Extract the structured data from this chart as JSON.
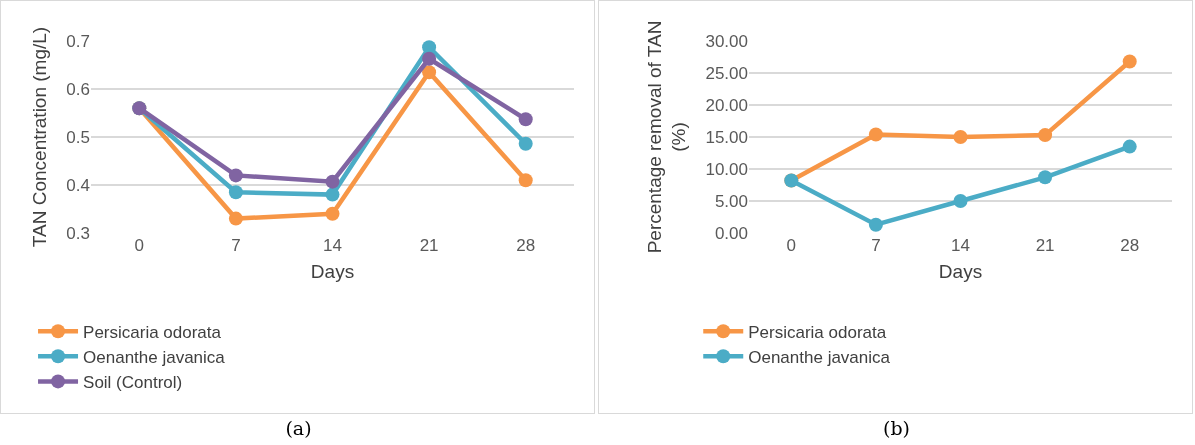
{
  "chart_data": [
    {
      "type": "line",
      "xlabel": "Days",
      "ylabel": "TAN Concentration (mg/L)",
      "categories": [
        "0",
        "7",
        "14",
        "21",
        "28"
      ],
      "series": [
        {
          "name": "Persicaria odorata",
          "color": "#f79646",
          "values": [
            0.56,
            0.33,
            0.34,
            0.635,
            0.41
          ]
        },
        {
          "name": "Oenanthe javanica",
          "color": "#4bacc6",
          "values": [
            0.56,
            0.385,
            0.38,
            0.687,
            0.486
          ]
        },
        {
          "name": "Soil (Control)",
          "color": "#8064a2",
          "values": [
            0.56,
            0.42,
            0.407,
            0.663,
            0.537
          ]
        }
      ],
      "ylim": [
        0.3,
        0.7
      ],
      "yticks": [
        0.3,
        0.4,
        0.5,
        0.6,
        0.7
      ],
      "grid": "y",
      "legend": "bottom",
      "marker": "circle",
      "line_style": "solid",
      "annotations": [
        "(a)"
      ]
    },
    {
      "type": "line",
      "xlabel": "Days",
      "ylabel": "Percentage removal of TAN (%)",
      "categories": [
        "0",
        "7",
        "14",
        "21",
        "28"
      ],
      "series": [
        {
          "name": "Persicaria odorata",
          "color": "#f79646",
          "values": [
            8.2,
            15.4,
            15.0,
            15.3,
            26.8
          ]
        },
        {
          "name": "Oenanthe javanica",
          "color": "#4bacc6",
          "values": [
            8.2,
            1.3,
            5.0,
            8.7,
            13.5
          ]
        }
      ],
      "ylim": [
        0,
        30
      ],
      "yticks": [
        {
          "value": 0,
          "label": "0.00"
        },
        {
          "value": 5,
          "label": "5.00"
        },
        {
          "value": 10,
          "label": "10.00"
        },
        {
          "value": 15,
          "label": "15.00"
        },
        {
          "value": 20,
          "label": "20.00"
        },
        {
          "value": 25,
          "label": "25.00"
        },
        {
          "value": 30,
          "label": "30.00"
        }
      ],
      "grid": "y",
      "legend": "bottom",
      "marker": "circle",
      "line_style": "solid",
      "annotations": [
        "(b)"
      ]
    }
  ]
}
